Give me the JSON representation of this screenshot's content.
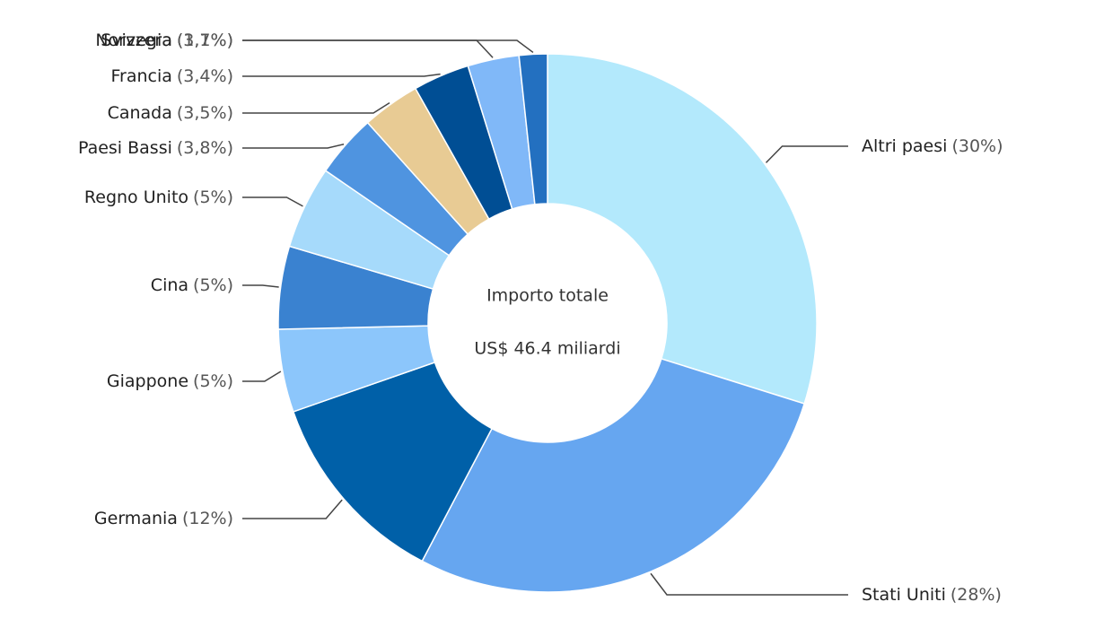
{
  "chart_data": {
    "type": "donut",
    "center_label": [
      "Importo totale",
      "US$ 46.4 miliardi"
    ],
    "categories": [
      "Altri paesi",
      "Stati Uniti",
      "Germania",
      "Giappone",
      "Cina",
      "Regno Unito",
      "Paesi Bassi",
      "Canada",
      "Francia",
      "Norvegia",
      "Svizzera"
    ],
    "values": [
      30,
      28,
      12,
      5,
      5,
      5,
      3.8,
      3.5,
      3.4,
      3.1,
      1.7
    ],
    "value_labels": [
      "(30%)",
      "(28%)",
      "(12%)",
      "(5%)",
      "(5%)",
      "(5%)",
      "(3,8%)",
      "(3,5%)",
      "(3,4%)",
      "(3,1%)",
      "(1,7%)"
    ],
    "colors": [
      "#b3e9fc",
      "#66a6f0",
      "#0060a8",
      "#8cc6fb",
      "#3a82d0",
      "#a6dafb",
      "#4f94e0",
      "#e8cb94",
      "#004e94",
      "#80b8f8",
      "#2370c0"
    ]
  }
}
